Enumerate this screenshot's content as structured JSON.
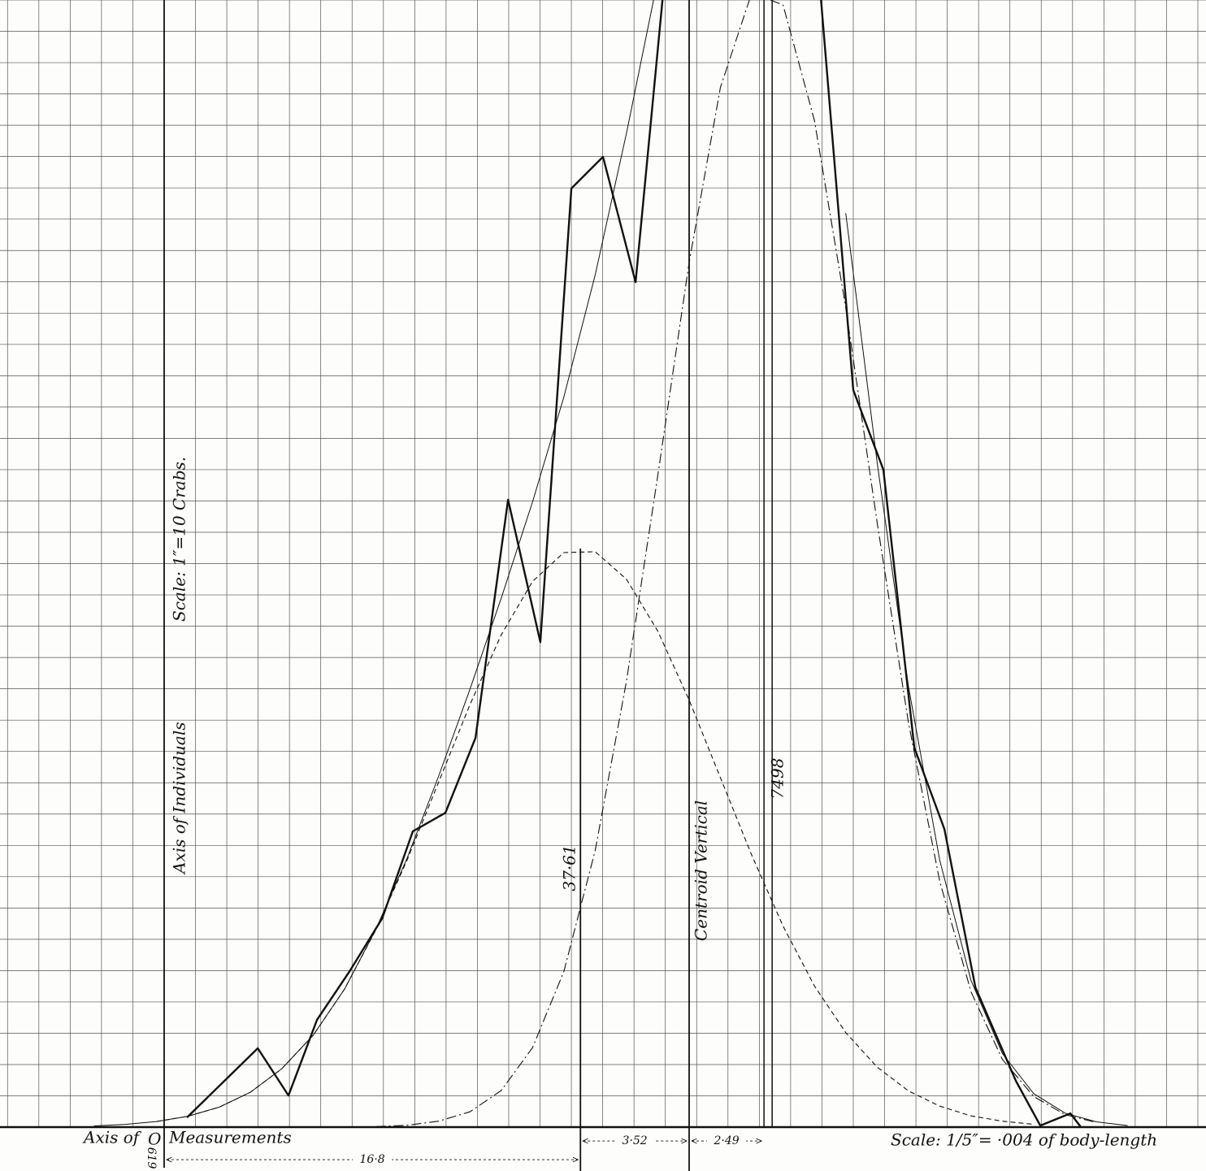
{
  "chart_data": {
    "type": "line",
    "xlim": [
      0,
      38.5
    ],
    "ylim": [
      -1.4,
      36
    ],
    "xticks": [
      0.24,
      1.24,
      2.24,
      3.24,
      4.24,
      5.24,
      6.24,
      7.24,
      8.24,
      9.24,
      10.24,
      11.24,
      12.24,
      13.24,
      14.24,
      15.24,
      16.24,
      17.24,
      18.24,
      19.24,
      20.24,
      21.24,
      22.24,
      23.24,
      24.24,
      25.24,
      26.24,
      27.24,
      28.24,
      29.24,
      30.24,
      31.24,
      32.24,
      33.24,
      34.24,
      35.24,
      36.24,
      37.24,
      38.24
    ],
    "yticks": [
      0,
      1,
      2,
      3,
      4,
      5,
      6,
      7,
      8,
      9,
      10,
      11,
      12,
      13,
      14,
      15,
      16,
      17,
      18,
      19,
      20,
      21,
      22,
      23,
      24,
      25,
      26,
      27,
      28,
      29,
      30,
      31,
      32,
      33,
      34,
      35,
      36
    ],
    "grid": true,
    "color": "#111111",
    "series": [
      {
        "line_style": "thick",
        "x": [
          5.97,
          8.23,
          9.21,
          10.12,
          11.16,
          12.2,
          13.18,
          14.22,
          15.18,
          16.22,
          17.25,
          18.24,
          19.25,
          20.29,
          21.15,
          null,
          26.21,
          27.24,
          28.2,
          29.19,
          30.15,
          31.14,
          32.43,
          33.21,
          34.17,
          34.51
        ],
        "values": [
          0.31,
          2.52,
          1.01,
          3.43,
          4.98,
          6.67,
          9.45,
          10.04,
          12.43,
          20.04,
          15.49,
          29.98,
          30.99,
          26.99,
          36,
          null,
          36,
          23.54,
          21.0,
          12.12,
          9.52,
          4.46,
          1.48,
          0.05,
          0.44,
          0
        ]
      },
      {
        "line_style": "thin",
        "x": [
          3,
          4,
          5,
          6,
          7,
          8,
          9,
          10,
          11,
          12,
          13,
          14,
          15,
          16,
          17,
          18,
          19,
          20,
          21,
          null,
          27,
          28,
          29,
          30,
          31,
          32,
          33,
          34,
          35,
          36
        ],
        "values": [
          0.04,
          0.09,
          0.18,
          0.35,
          0.64,
          1.12,
          1.87,
          2.94,
          4.41,
          6.32,
          8.6,
          11.2,
          13.98,
          16.89,
          19.97,
          23.32,
          27.22,
          31.75,
          36.67,
          null,
          29.19,
          21.24,
          14.09,
          8.52,
          4.68,
          2.35,
          1.07,
          0.45,
          0.17,
          0.05
        ]
      },
      {
        "line_style": "dashed",
        "x": [
          5,
          6,
          7,
          8,
          9,
          10,
          11,
          12,
          13,
          14,
          15,
          16,
          17,
          18,
          19,
          20,
          21,
          22,
          23,
          24,
          25,
          26,
          27,
          28,
          29,
          30,
          31,
          32,
          33
        ],
        "values": [
          0.18,
          0.35,
          0.64,
          1.12,
          1.87,
          2.94,
          4.41,
          6.3,
          8.54,
          11.01,
          13.49,
          15.72,
          17.43,
          18.35,
          18.38,
          17.5,
          15.84,
          13.64,
          11.16,
          8.68,
          6.42,
          4.51,
          3.02,
          1.92,
          1.16,
          0.67,
          0.36,
          0.19,
          0.09
        ]
      },
      {
        "line_style": "dash-dot",
        "x": [
          12,
          13,
          14,
          15,
          16,
          17,
          18,
          19,
          20,
          21,
          22,
          23,
          24,
          25,
          26,
          27,
          28,
          29,
          30,
          31,
          32,
          33,
          34,
          35
        ],
        "values": [
          0.02,
          0.06,
          0.19,
          0.49,
          1.17,
          2.54,
          4.97,
          8.84,
          14.25,
          20.83,
          27.62,
          33.21,
          36.23,
          35.84,
          32.15,
          26.17,
          19.32,
          12.93,
          7.85,
          4.32,
          2.16,
          0.98,
          0.4,
          0.15
        ]
      }
    ],
    "axis_x": 5.24,
    "mode": {
      "x": 18.53,
      "y": 18.48
    },
    "centroid_x": 22.0,
    "ordinate_x": [
      24.39,
      24.65
    ],
    "annotations": {
      "y_axis_label": "Axis of Individuals",
      "y_scale": "Scale: 1″=10 Crabs.",
      "x_axis_label_a": "Axis of",
      "origin": "O",
      "x_axis_label_b": "Measurements",
      "origin_value": "619",
      "x_scale": "Scale: 1/5″= ·004 of body-length",
      "mode_height": "37·61",
      "centroid": "Centroid Vertical",
      "ordinate": "7498",
      "dist_origin": "16·8",
      "dist_a": "3·52",
      "dist_b": "2·49"
    }
  }
}
